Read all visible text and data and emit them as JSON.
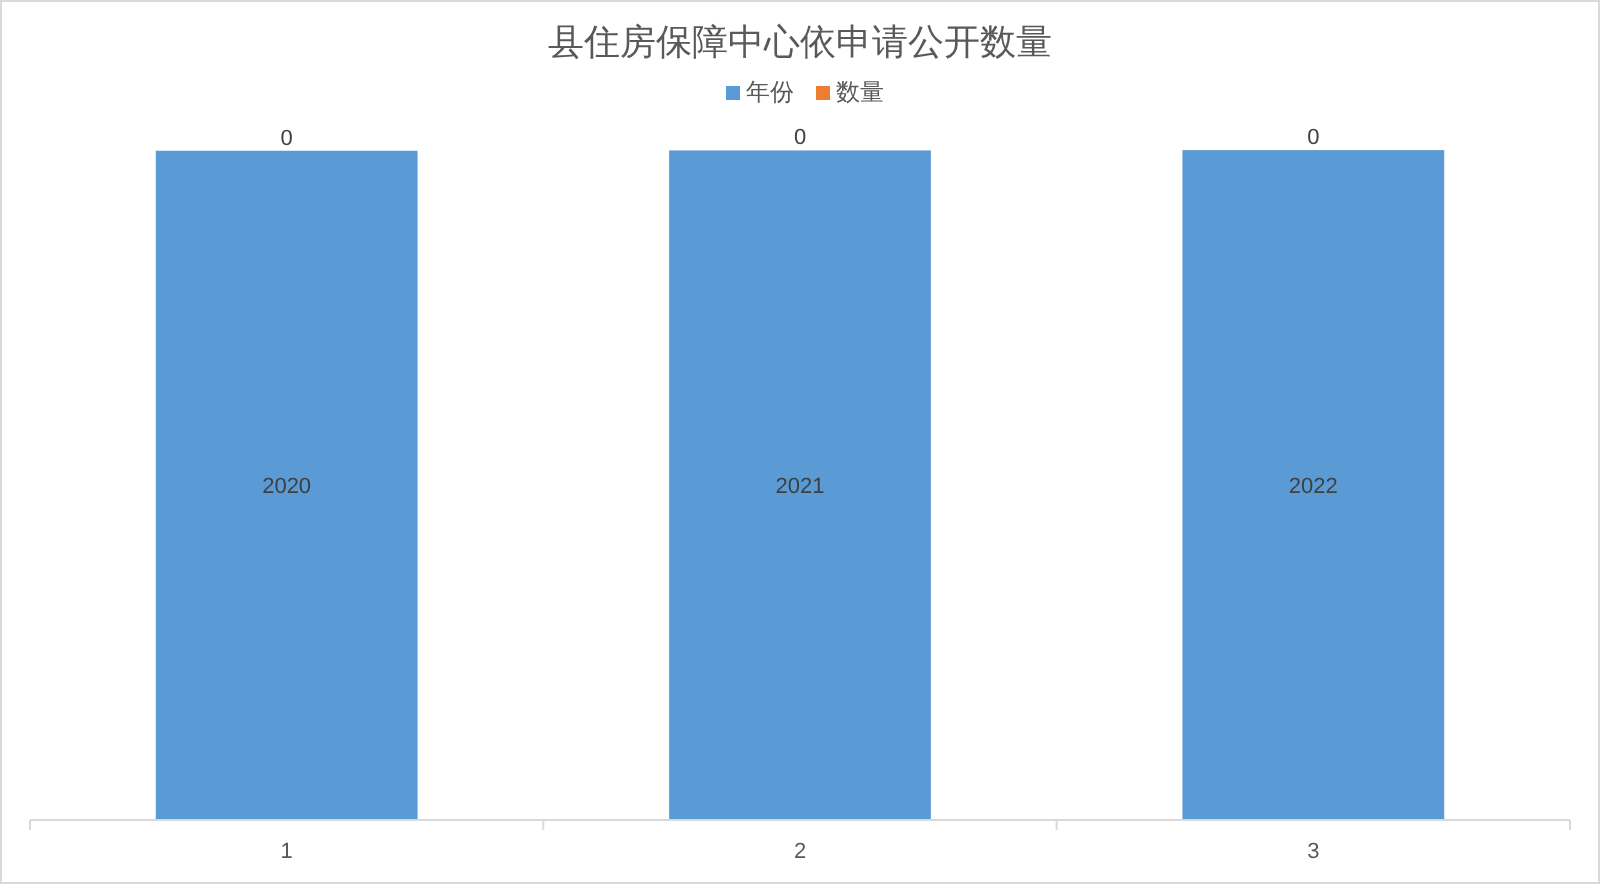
{
  "chart_data": {
    "type": "bar",
    "title": "县住房保障中心依申请公开数量",
    "categories": [
      "1",
      "2",
      "3"
    ],
    "stacked": true,
    "data_labels": true,
    "legend": "top",
    "series": [
      {
        "name": "年份",
        "color": "#5b9bd5",
        "values": [
          2020,
          2021,
          2022
        ]
      },
      {
        "name": "数量",
        "color": "#ed7d31",
        "values": [
          0,
          0,
          0
        ]
      }
    ]
  }
}
